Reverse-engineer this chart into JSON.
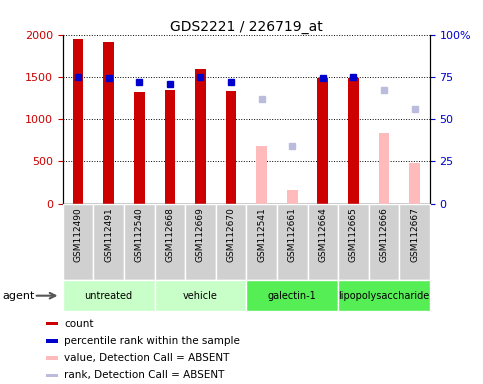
{
  "title": "GDS2221 / 226719_at",
  "samples": [
    "GSM112490",
    "GSM112491",
    "GSM112540",
    "GSM112668",
    "GSM112669",
    "GSM112670",
    "GSM112541",
    "GSM112661",
    "GSM112664",
    "GSM112665",
    "GSM112666",
    "GSM112667"
  ],
  "count_values": [
    1950,
    1910,
    1320,
    1340,
    1590,
    1330,
    null,
    null,
    1480,
    1490,
    null,
    null
  ],
  "absent_values": [
    null,
    null,
    null,
    null,
    null,
    null,
    685,
    155,
    null,
    null,
    840,
    480
  ],
  "percentile_present": [
    75,
    74,
    72,
    71,
    75,
    72,
    null,
    null,
    74,
    75,
    null,
    null
  ],
  "percentile_absent": [
    null,
    null,
    null,
    null,
    null,
    null,
    62,
    34,
    null,
    null,
    67,
    56
  ],
  "group_data": [
    {
      "start": 0,
      "end": 3,
      "name": "untreated",
      "color": "#c8ffc8"
    },
    {
      "start": 3,
      "end": 6,
      "name": "vehicle",
      "color": "#c8ffc8"
    },
    {
      "start": 6,
      "end": 9,
      "name": "galectin-1",
      "color": "#55ee55"
    },
    {
      "start": 9,
      "end": 12,
      "name": "lipopolysaccharide",
      "color": "#55ee55"
    }
  ],
  "ylim_left": [
    0,
    2000
  ],
  "ylim_right": [
    0,
    100
  ],
  "yticks_left": [
    0,
    500,
    1000,
    1500,
    2000
  ],
  "ytick_labels_left": [
    "0",
    "500",
    "1000",
    "1500",
    "2000"
  ],
  "yticks_right": [
    0,
    25,
    50,
    75,
    100
  ],
  "ytick_labels_right": [
    "0",
    "25",
    "50",
    "75",
    "100%"
  ],
  "legend_items": [
    {
      "label": "count",
      "color": "#cc0000"
    },
    {
      "label": "percentile rank within the sample",
      "color": "#0000cc"
    },
    {
      "label": "value, Detection Call = ABSENT",
      "color": "#ffbbbb"
    },
    {
      "label": "rank, Detection Call = ABSENT",
      "color": "#bbbbdd"
    }
  ],
  "bar_width": 0.35,
  "count_color": "#cc0000",
  "absent_color": "#ffbbbb",
  "percentile_color": "#0000cc",
  "percentile_absent_color": "#bbbbdd",
  "sample_box_color": "#d0d0d0",
  "title_fontsize": 10,
  "axis_color_left": "#cc0000",
  "axis_color_right": "#0000cc"
}
